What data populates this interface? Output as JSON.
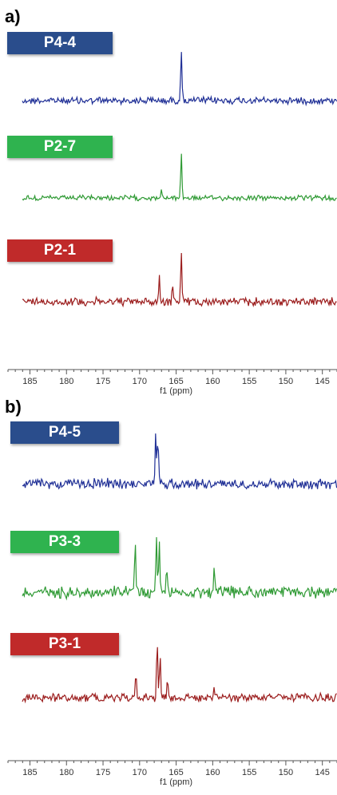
{
  "chart_data": [
    {
      "panel": "a)",
      "type": "line",
      "xlabel": "f1 (ppm)",
      "xlim": [
        188,
        143
      ],
      "x_reversed": true,
      "x_ticks": [
        185,
        180,
        175,
        170,
        165,
        160,
        155,
        150,
        145
      ],
      "series": [
        {
          "name": "P4-4",
          "color": "#1f2f96",
          "label_bg": "#2a4d8c",
          "noise": 3.5,
          "peaks": [
            {
              "x": 164.3,
              "height": 66
            }
          ]
        },
        {
          "name": "P2-7",
          "color": "#2f9a34",
          "label_bg": "#2fb34f",
          "noise": 2.5,
          "peaks": [
            {
              "x": 164.3,
              "height": 58
            },
            {
              "x": 167.0,
              "height": 8
            }
          ]
        },
        {
          "name": "P2-1",
          "color": "#9b1c1c",
          "label_bg": "#c02a2a",
          "noise": 4,
          "peaks": [
            {
              "x": 164.3,
              "height": 65
            },
            {
              "x": 167.3,
              "height": 32
            },
            {
              "x": 165.5,
              "height": 20
            }
          ]
        }
      ]
    },
    {
      "panel": "b)",
      "type": "line",
      "xlabel": "f1 (ppm)",
      "xlim": [
        188,
        143
      ],
      "x_reversed": true,
      "x_ticks": [
        185,
        180,
        175,
        170,
        165,
        160,
        155,
        150,
        145
      ],
      "series": [
        {
          "name": "P4-5",
          "color": "#1f2f96",
          "label_bg": "#2a4d8c",
          "noise": 5,
          "peaks": [
            {
              "x": 167.8,
              "height": 68
            },
            {
              "x": 167.5,
              "height": 60
            }
          ]
        },
        {
          "name": "P3-3",
          "color": "#2f9a34",
          "label_bg": "#2fb34f",
          "noise": 6,
          "peaks": [
            {
              "x": 170.6,
              "height": 64
            },
            {
              "x": 167.7,
              "height": 72
            },
            {
              "x": 167.3,
              "height": 66
            },
            {
              "x": 166.3,
              "height": 28
            },
            {
              "x": 159.8,
              "height": 30
            }
          ]
        },
        {
          "name": "P3-1",
          "color": "#9b1c1c",
          "label_bg": "#c02a2a",
          "noise": 4,
          "peaks": [
            {
              "x": 167.6,
              "height": 72
            },
            {
              "x": 167.2,
              "height": 55
            },
            {
              "x": 170.5,
              "height": 30
            },
            {
              "x": 166.2,
              "height": 25
            },
            {
              "x": 159.8,
              "height": 8
            }
          ]
        }
      ]
    }
  ]
}
